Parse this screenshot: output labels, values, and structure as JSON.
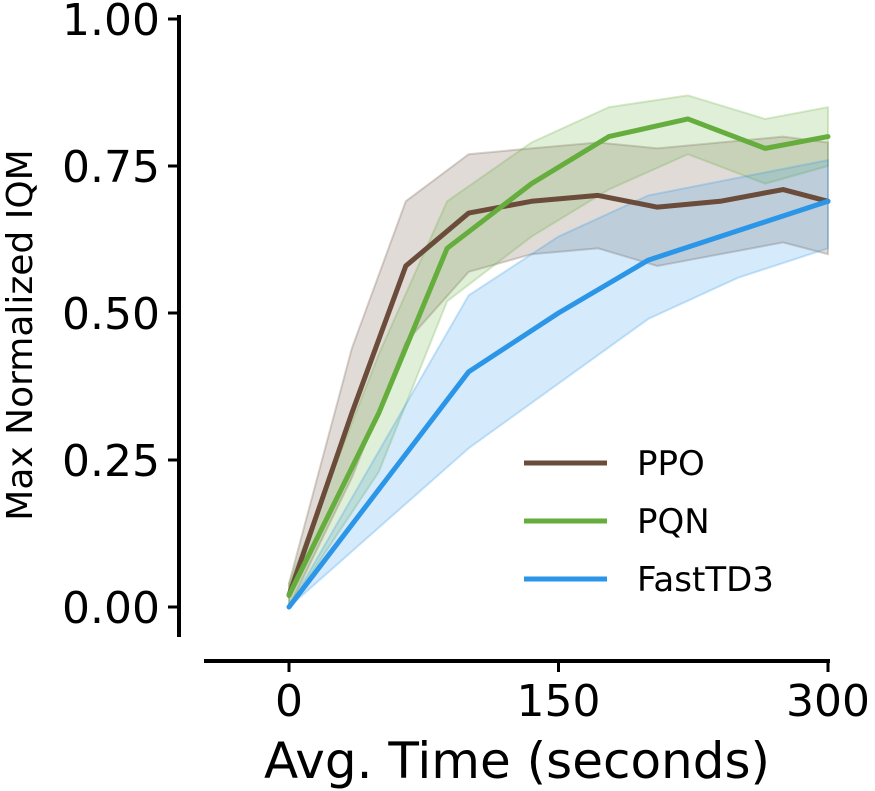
{
  "chart_data": {
    "type": "line",
    "title": "",
    "xlabel": "Avg. Time (seconds)",
    "ylabel": "Max Normalized IQM",
    "xlim": [
      -15,
      300
    ],
    "ylim": [
      -0.05,
      1.0
    ],
    "xticks": [
      0,
      150,
      300
    ],
    "xtick_labels": [
      "0",
      "150",
      "300"
    ],
    "yticks": [
      0.0,
      0.25,
      0.5,
      0.75,
      1.0
    ],
    "ytick_labels": [
      "0.00",
      "0.25",
      "0.50",
      "0.75",
      "1.00"
    ],
    "grid": false,
    "legend_position": "lower-right",
    "series": [
      {
        "name": "PPO",
        "color": "#6b4c3b",
        "x": [
          0,
          35,
          65,
          100,
          135,
          172,
          205,
          240,
          275,
          300
        ],
        "y": [
          0.02,
          0.33,
          0.58,
          0.67,
          0.69,
          0.7,
          0.68,
          0.69,
          0.71,
          0.69
        ],
        "lower": [
          0.0,
          0.22,
          0.45,
          0.57,
          0.6,
          0.61,
          0.58,
          0.6,
          0.62,
          0.6
        ],
        "upper": [
          0.04,
          0.44,
          0.69,
          0.77,
          0.78,
          0.79,
          0.78,
          0.79,
          0.8,
          0.79
        ]
      },
      {
        "name": "PQN",
        "color": "#65ad3d",
        "x": [
          0,
          50,
          88,
          135,
          178,
          222,
          265,
          300
        ],
        "y": [
          0.02,
          0.33,
          0.61,
          0.72,
          0.8,
          0.83,
          0.78,
          0.8
        ],
        "lower": [
          0.0,
          0.23,
          0.52,
          0.63,
          0.71,
          0.77,
          0.72,
          0.75
        ],
        "upper": [
          0.04,
          0.43,
          0.69,
          0.79,
          0.85,
          0.87,
          0.83,
          0.85
        ]
      },
      {
        "name": "FastTD3",
        "color": "#2b96e8",
        "x": [
          0,
          100,
          150,
          200,
          250,
          300
        ],
        "y": [
          0.0,
          0.4,
          0.5,
          0.59,
          0.64,
          0.69
        ],
        "lower": [
          0.0,
          0.27,
          0.38,
          0.49,
          0.56,
          0.61
        ],
        "upper": [
          0.0,
          0.53,
          0.63,
          0.7,
          0.73,
          0.76
        ]
      }
    ]
  }
}
